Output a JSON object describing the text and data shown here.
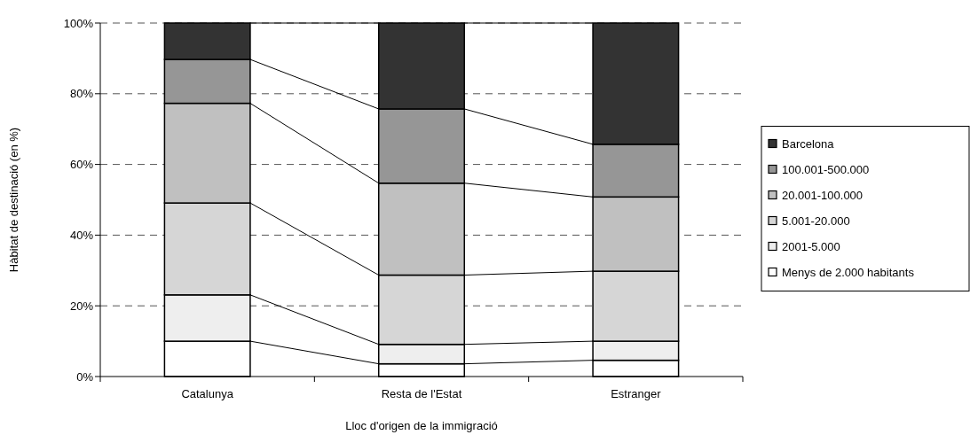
{
  "chart_data": {
    "type": "bar",
    "stacked": true,
    "xlabel": "Lloc d'origen de la immigració",
    "ylabel": "Hàbitat de destinació (en %)",
    "categories": [
      "Catalunya",
      "Resta de l'Estat",
      "Estranger"
    ],
    "series": [
      {
        "name": "Menys de 2.000 habitants",
        "color": "#ffffff",
        "values": [
          10.0,
          3.6,
          4.6
        ]
      },
      {
        "name": "2001-5.000",
        "color": "#eeeeee",
        "values": [
          13.1,
          5.5,
          5.4
        ]
      },
      {
        "name": "5.001-20.000",
        "color": "#d6d6d6",
        "values": [
          26.0,
          19.6,
          19.8
        ]
      },
      {
        "name": "20.001-100.000",
        "color": "#c0c0c0",
        "values": [
          28.2,
          26.0,
          21.0
        ]
      },
      {
        "name": "100.001-500.000",
        "color": "#969696",
        "values": [
          12.4,
          21.0,
          14.9
        ]
      },
      {
        "name": "Barcelona",
        "color": "#333333",
        "values": [
          10.3,
          24.3,
          34.3
        ]
      }
    ],
    "ylim": [
      0,
      100
    ],
    "yticks": [
      {
        "value": 0,
        "label": "0%"
      },
      {
        "value": 20,
        "label": "20%"
      },
      {
        "value": 40,
        "label": "40%"
      },
      {
        "value": 60,
        "label": "60%"
      },
      {
        "value": 80,
        "label": "80%"
      },
      {
        "value": 100,
        "label": "100%"
      }
    ],
    "grid": "y",
    "legend": "right"
  }
}
